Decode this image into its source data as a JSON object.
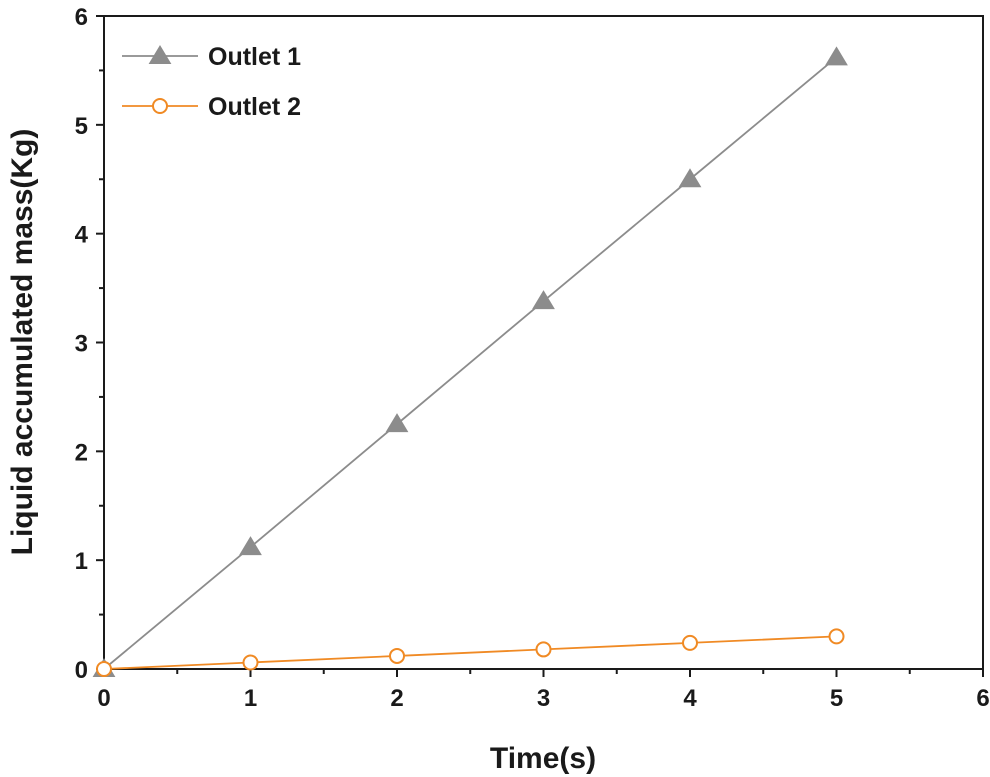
{
  "chart_data": {
    "type": "line",
    "xlabel": "Time(s)",
    "ylabel": "Liquid accumulated mass(Kg)",
    "xlim": [
      0,
      6
    ],
    "ylim": [
      0,
      6
    ],
    "xticks": [
      "0",
      "1",
      "2",
      "3",
      "4",
      "5",
      "6"
    ],
    "yticks": [
      "0",
      "1",
      "2",
      "3",
      "4",
      "5",
      "6"
    ],
    "grid": false,
    "legend_position": "top-left",
    "series": [
      {
        "name": "Outlet 1",
        "marker": "triangle",
        "color": "#8c8c8c",
        "x": [
          0,
          1,
          2,
          3,
          4,
          5
        ],
        "y": [
          0,
          1.12,
          2.25,
          3.38,
          4.5,
          5.62
        ]
      },
      {
        "name": "Outlet 2",
        "marker": "circle-open",
        "color": "#f08a24",
        "x": [
          0,
          1,
          2,
          3,
          4,
          5
        ],
        "y": [
          0,
          0.06,
          0.12,
          0.18,
          0.24,
          0.3
        ]
      }
    ]
  }
}
